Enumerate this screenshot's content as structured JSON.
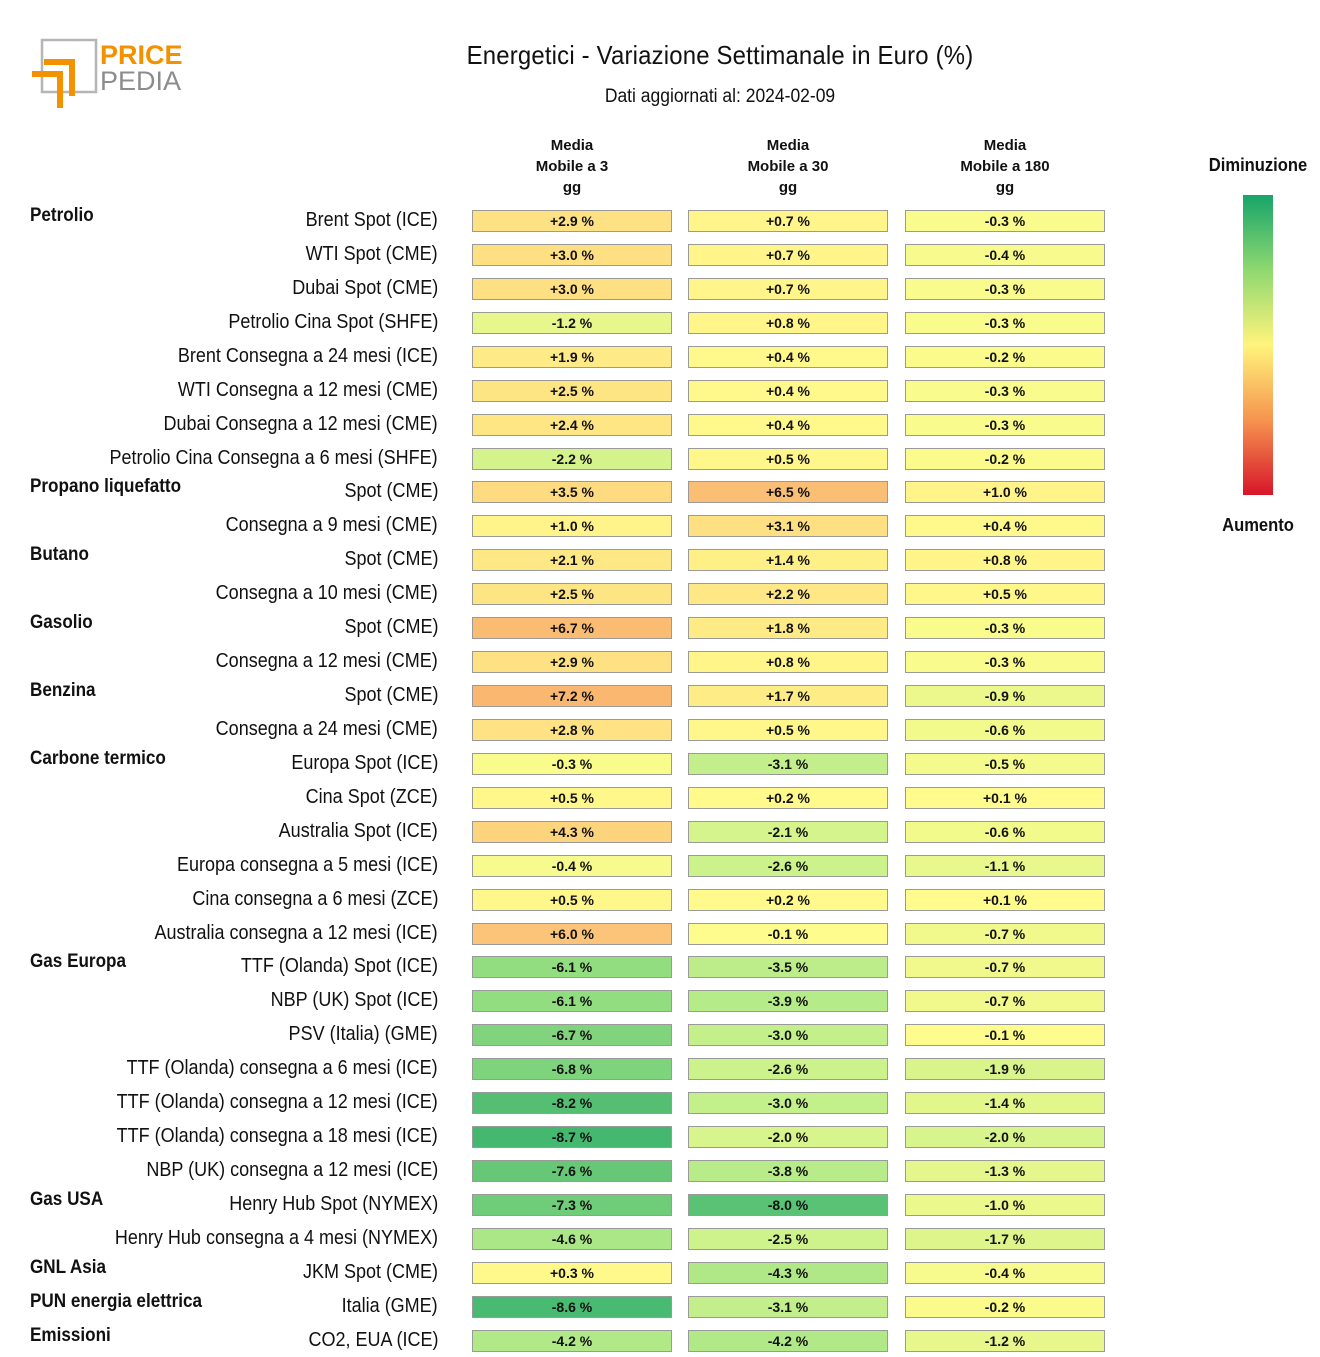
{
  "logo": {
    "line1": "PRICE",
    "line2": "PEDIA",
    "color_primary": "#f39200",
    "color_secondary": "#8c8c8c"
  },
  "chart_data": {
    "type": "table",
    "title": "Energetici - Variazione Settimanale in Euro (%)",
    "subtitle": "Dati aggiornati al: 2024-02-09",
    "columns": [
      "Media\nMobile a 3\ngg",
      "Media\nMobile a 30\ngg",
      "Media\nMobile a 180\ngg"
    ],
    "legend": {
      "top": "Diminuzione",
      "bottom": "Aumento"
    },
    "unit": "%",
    "rows": [
      {
        "category": "Petrolio",
        "label": "Brent Spot (ICE)",
        "values": [
          2.9,
          0.7,
          -0.3
        ]
      },
      {
        "label": "WTI Spot (CME)",
        "values": [
          3.0,
          0.7,
          -0.4
        ]
      },
      {
        "label": "Dubai Spot (CME)",
        "values": [
          3.0,
          0.7,
          -0.3
        ]
      },
      {
        "label": "Petrolio Cina Spot (SHFE)",
        "values": [
          -1.2,
          0.8,
          -0.3
        ]
      },
      {
        "label": "Brent Consegna a 24 mesi (ICE)",
        "values": [
          1.9,
          0.4,
          -0.2
        ]
      },
      {
        "label": "WTI Consegna a 12 mesi (CME)",
        "values": [
          2.5,
          0.4,
          -0.3
        ]
      },
      {
        "label": "Dubai Consegna a 12 mesi (CME)",
        "values": [
          2.4,
          0.4,
          -0.3
        ]
      },
      {
        "label": "Petrolio Cina Consegna a 6 mesi (SHFE)",
        "values": [
          -2.2,
          0.5,
          -0.2
        ]
      },
      {
        "category": "Propano liquefatto",
        "label": "Spot (CME)",
        "values": [
          3.5,
          6.5,
          1.0
        ]
      },
      {
        "label": "Consegna a 9 mesi (CME)",
        "values": [
          1.0,
          3.1,
          0.4
        ]
      },
      {
        "category": "Butano",
        "label": "Spot (CME)",
        "values": [
          2.1,
          1.4,
          0.8
        ]
      },
      {
        "label": "Consegna a 10 mesi (CME)",
        "values": [
          2.5,
          2.2,
          0.5
        ]
      },
      {
        "category": "Gasolio",
        "label": "Spot (CME)",
        "values": [
          6.7,
          1.8,
          -0.3
        ]
      },
      {
        "label": "Consegna a 12 mesi (CME)",
        "values": [
          2.9,
          0.8,
          -0.3
        ]
      },
      {
        "category": "Benzina",
        "label": "Spot (CME)",
        "values": [
          7.2,
          1.7,
          -0.9
        ]
      },
      {
        "label": "Consegna a 24 mesi (CME)",
        "values": [
          2.8,
          0.5,
          -0.6
        ]
      },
      {
        "category": "Carbone termico",
        "label": "Europa Spot (ICE)",
        "values": [
          -0.3,
          -3.1,
          -0.5
        ]
      },
      {
        "label": "Cina Spot (ZCE)",
        "values": [
          0.5,
          0.2,
          0.1
        ]
      },
      {
        "label": "Australia Spot (ICE)",
        "values": [
          4.3,
          -2.1,
          -0.6
        ]
      },
      {
        "label": "Europa consegna a 5 mesi (ICE)",
        "values": [
          -0.4,
          -2.6,
          -1.1
        ]
      },
      {
        "label": "Cina consegna a 6 mesi (ZCE)",
        "values": [
          0.5,
          0.2,
          0.1
        ]
      },
      {
        "label": "Australia consegna a 12 mesi (ICE)",
        "values": [
          6.0,
          -0.1,
          -0.7
        ]
      },
      {
        "category": "Gas Europa",
        "label": "TTF (Olanda) Spot (ICE)",
        "values": [
          -6.1,
          -3.5,
          -0.7
        ]
      },
      {
        "label": "NBP (UK) Spot (ICE)",
        "values": [
          -6.1,
          -3.9,
          -0.7
        ]
      },
      {
        "label": "PSV (Italia) (GME)",
        "values": [
          -6.7,
          -3.0,
          -0.1
        ]
      },
      {
        "label": "TTF (Olanda) consegna a 6 mesi (ICE)",
        "values": [
          -6.8,
          -2.6,
          -1.9
        ]
      },
      {
        "label": "TTF (Olanda) consegna a 12 mesi (ICE)",
        "values": [
          -8.2,
          -3.0,
          -1.4
        ]
      },
      {
        "label": "TTF (Olanda) consegna a 18 mesi (ICE)",
        "values": [
          -8.7,
          -2.0,
          -2.0
        ]
      },
      {
        "label": "NBP (UK) consegna a 12 mesi (ICE)",
        "values": [
          -7.6,
          -3.8,
          -1.3
        ]
      },
      {
        "category": "Gas USA",
        "label": "Henry Hub Spot (NYMEX)",
        "values": [
          -7.3,
          -8.0,
          -1.0
        ]
      },
      {
        "label": "Henry Hub consegna a 4 mesi (NYMEX)",
        "values": [
          -4.6,
          -2.5,
          -1.7
        ]
      },
      {
        "category": "GNL Asia",
        "label": "JKM Spot (CME)",
        "values": [
          0.3,
          -4.3,
          -0.4
        ]
      },
      {
        "category": "PUN energia elettrica",
        "label": "Italia (GME)",
        "values": [
          -8.6,
          -3.1,
          -0.2
        ]
      },
      {
        "category": "Emissioni",
        "label": "CO2, EUA (ICE)",
        "values": [
          -4.2,
          -4.2,
          -1.2
        ]
      }
    ]
  }
}
